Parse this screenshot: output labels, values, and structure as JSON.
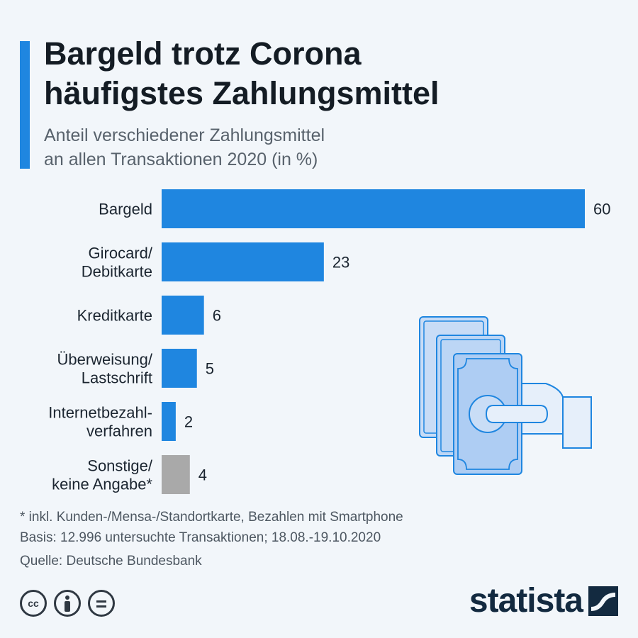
{
  "header": {
    "title_line1": "Bargeld trotz Corona",
    "title_line2": "häufigstes Zahlungsmittel",
    "subtitle_line1": "Anteil verschiedener Zahlungsmittel",
    "subtitle_line2": "an allen Transaktionen 2020 (in %)"
  },
  "chart_data": {
    "type": "bar",
    "orientation": "horizontal",
    "categories": [
      [
        "Bargeld"
      ],
      [
        "Girocard/",
        "Debitkarte"
      ],
      [
        "Kreditkarte"
      ],
      [
        "Überweisung/",
        "Lastschrift"
      ],
      [
        "Internetbezahl-",
        "verfahren"
      ],
      [
        "Sonstige/",
        "keine Angabe*"
      ]
    ],
    "values": [
      60,
      23,
      6,
      5,
      2,
      4
    ],
    "bar_colors": [
      "#1f86e0",
      "#1f86e0",
      "#1f86e0",
      "#1f86e0",
      "#1f86e0",
      "#a9a9a9"
    ],
    "xlim": [
      0,
      60
    ],
    "grid": false,
    "legend": "none"
  },
  "footer": {
    "note": "* inkl. Kunden-/Mensa-/Standortkarte, Bezahlen mit Smartphone",
    "basis": "Basis: 12.996 untersuchte Transaktionen; 18.08.-19.10.2020",
    "source": "Quelle: Deutsche Bundesbank",
    "license_icons": [
      "cc-icon",
      "attribution-icon",
      "no-derivatives-icon"
    ],
    "brand": "statista"
  },
  "colors": {
    "accent": "#1f86e0",
    "other": "#a9a9a9",
    "background": "#f2f6fa",
    "brand": "#132a40"
  }
}
